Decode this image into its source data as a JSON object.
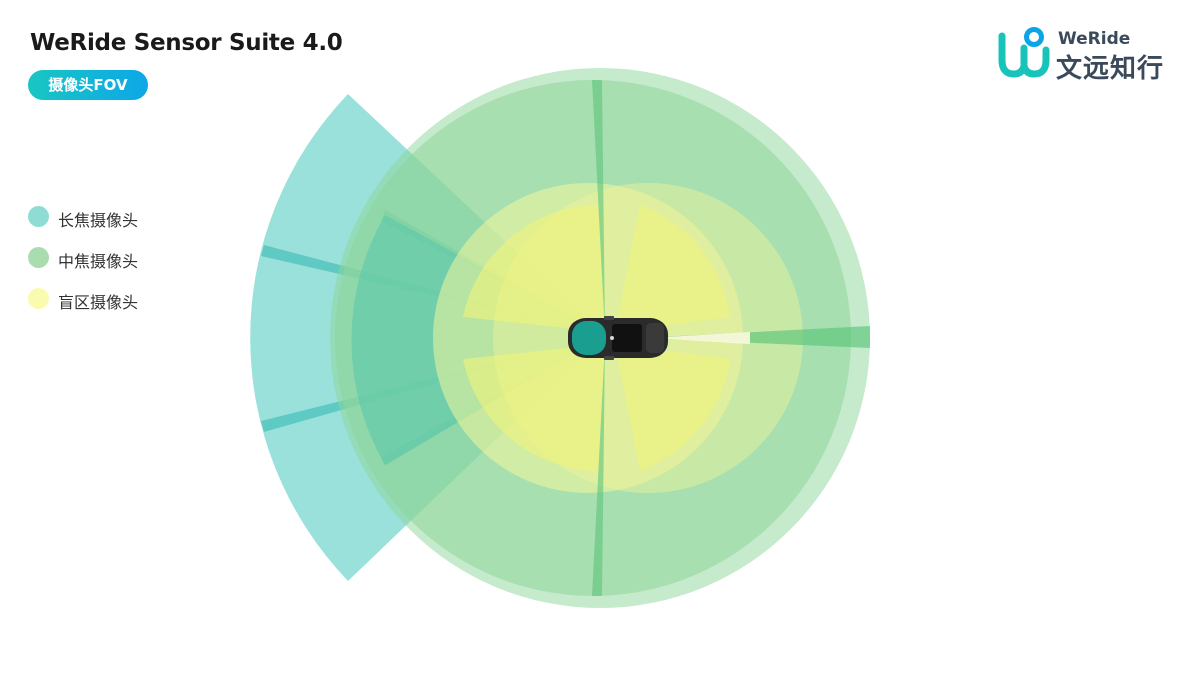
{
  "header": {
    "title": "WeRide Sensor Suite 4.0",
    "badge": "摄像头FOV"
  },
  "logo": {
    "en": "WeRide",
    "cn": "文远知行",
    "icon": "weride-logo-icon",
    "colors": [
      "#0ba5e6",
      "#18c4b9"
    ]
  },
  "legend": [
    {
      "label": "长焦摄像头",
      "color": "#8fdcd4"
    },
    {
      "label": "中焦摄像头",
      "color": "#a9ddb0"
    },
    {
      "label": "盲区摄像头",
      "color": "#fbfbb0"
    }
  ],
  "colors": {
    "telephoto_fill": "#5ccfc5",
    "mid_fill": "#8dd69a",
    "blind_fill": "#f2f59a",
    "car_body": "#2b2b2b",
    "car_glass": "#1a9e8f"
  }
}
